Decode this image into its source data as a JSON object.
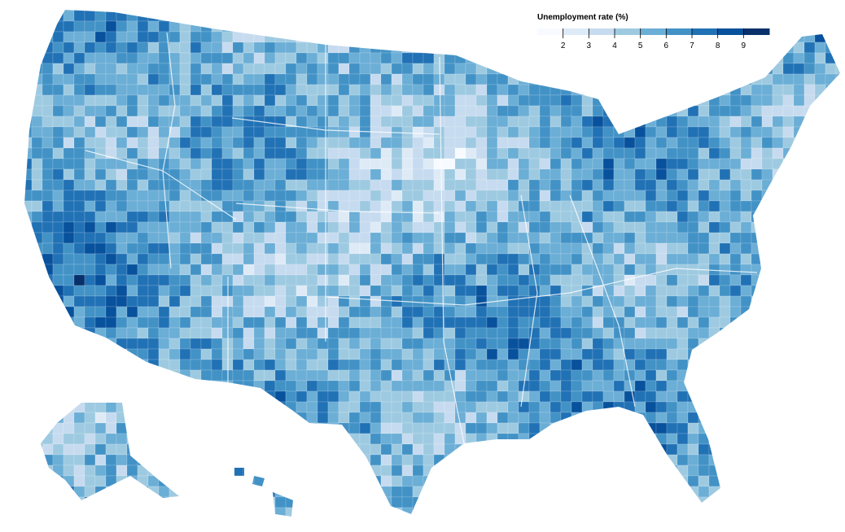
{
  "legend": {
    "title": "Unemployment rate (%)",
    "ticks": [
      2,
      3,
      4,
      5,
      6,
      7,
      8,
      9
    ],
    "xlim": [
      1,
      10
    ],
    "colors": [
      "#f7fbff",
      "#deebf7",
      "#c6dbef",
      "#9ecae1",
      "#6baed6",
      "#4292c6",
      "#2171b5",
      "#08519c",
      "#08306b"
    ]
  }
}
